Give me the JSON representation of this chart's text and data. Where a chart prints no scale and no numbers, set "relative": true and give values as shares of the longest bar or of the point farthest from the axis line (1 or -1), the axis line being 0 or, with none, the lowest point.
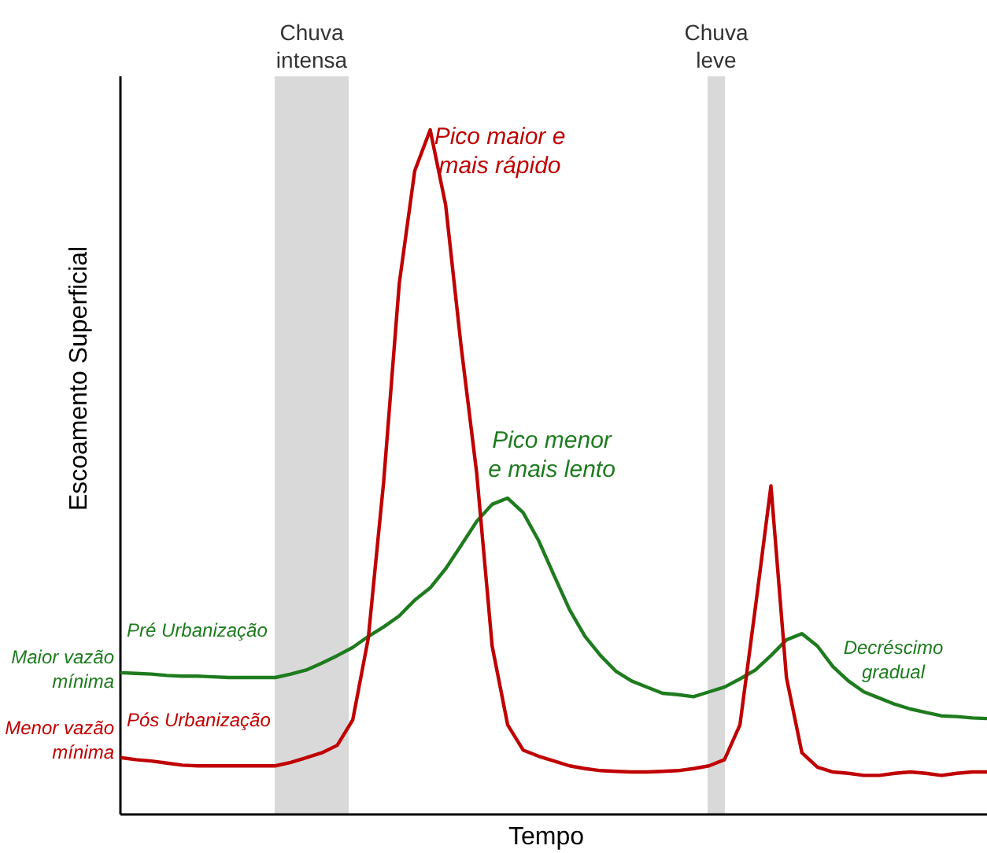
{
  "chart_data": {
    "type": "line",
    "relative": true,
    "xlabel": "Tempo",
    "ylabel": "Escoamento Superficial",
    "categories": [
      null,
      null,
      null,
      null,
      null,
      null,
      null,
      null,
      null,
      null,
      null,
      null,
      null,
      null,
      null,
      null,
      null,
      null,
      null,
      null,
      null,
      null,
      null,
      null,
      null,
      null,
      null,
      null,
      null,
      null,
      null,
      null,
      null,
      null,
      null,
      null,
      null,
      null,
      null,
      null,
      null,
      null,
      null,
      null,
      null,
      null,
      null,
      null,
      null,
      null,
      null,
      null,
      null,
      null,
      null,
      null,
      null
    ],
    "series": [
      {
        "name": "Pré Urbanização",
        "color": "#1e7b1e",
        "values": [
          0.207,
          0.206,
          0.205,
          0.203,
          0.202,
          0.202,
          0.201,
          0.2,
          0.2,
          0.2,
          0.2,
          0.205,
          0.211,
          0.221,
          0.232,
          0.244,
          0.26,
          0.274,
          0.29,
          0.313,
          0.331,
          0.359,
          0.393,
          0.428,
          0.453,
          0.462,
          0.441,
          0.4,
          0.349,
          0.299,
          0.26,
          0.232,
          0.209,
          0.195,
          0.186,
          0.177,
          0.175,
          0.172,
          0.179,
          0.186,
          0.198,
          0.211,
          0.232,
          0.255,
          0.264,
          0.246,
          0.216,
          0.195,
          0.179,
          0.17,
          0.161,
          0.154,
          0.149,
          0.144,
          0.143,
          0.141,
          0.14
        ]
      },
      {
        "name": "Pós Urbanização",
        "color": "#c00000",
        "values": [
          0.083,
          0.08,
          0.078,
          0.075,
          0.072,
          0.071,
          0.071,
          0.071,
          0.071,
          0.071,
          0.071,
          0.076,
          0.083,
          0.09,
          0.101,
          0.138,
          0.257,
          0.487,
          0.775,
          0.94,
          1.0,
          0.89,
          0.683,
          0.499,
          0.246,
          0.131,
          0.094,
          0.085,
          0.078,
          0.071,
          0.067,
          0.064,
          0.063,
          0.062,
          0.062,
          0.063,
          0.064,
          0.067,
          0.071,
          0.08,
          0.131,
          0.303,
          0.48,
          0.2,
          0.09,
          0.069,
          0.062,
          0.06,
          0.057,
          0.057,
          0.06,
          0.062,
          0.06,
          0.057,
          0.06,
          0.062,
          0.062
        ]
      }
    ],
    "annotations": [
      "Chuva\nintensa",
      "Chuva\nleve",
      "Maior vazão\nmínima",
      "Menor vazão\nmínima",
      "Pico maior e\nmais rápido",
      "Pico menor\ne mais lento",
      "Decréscimo\ngradual"
    ]
  }
}
